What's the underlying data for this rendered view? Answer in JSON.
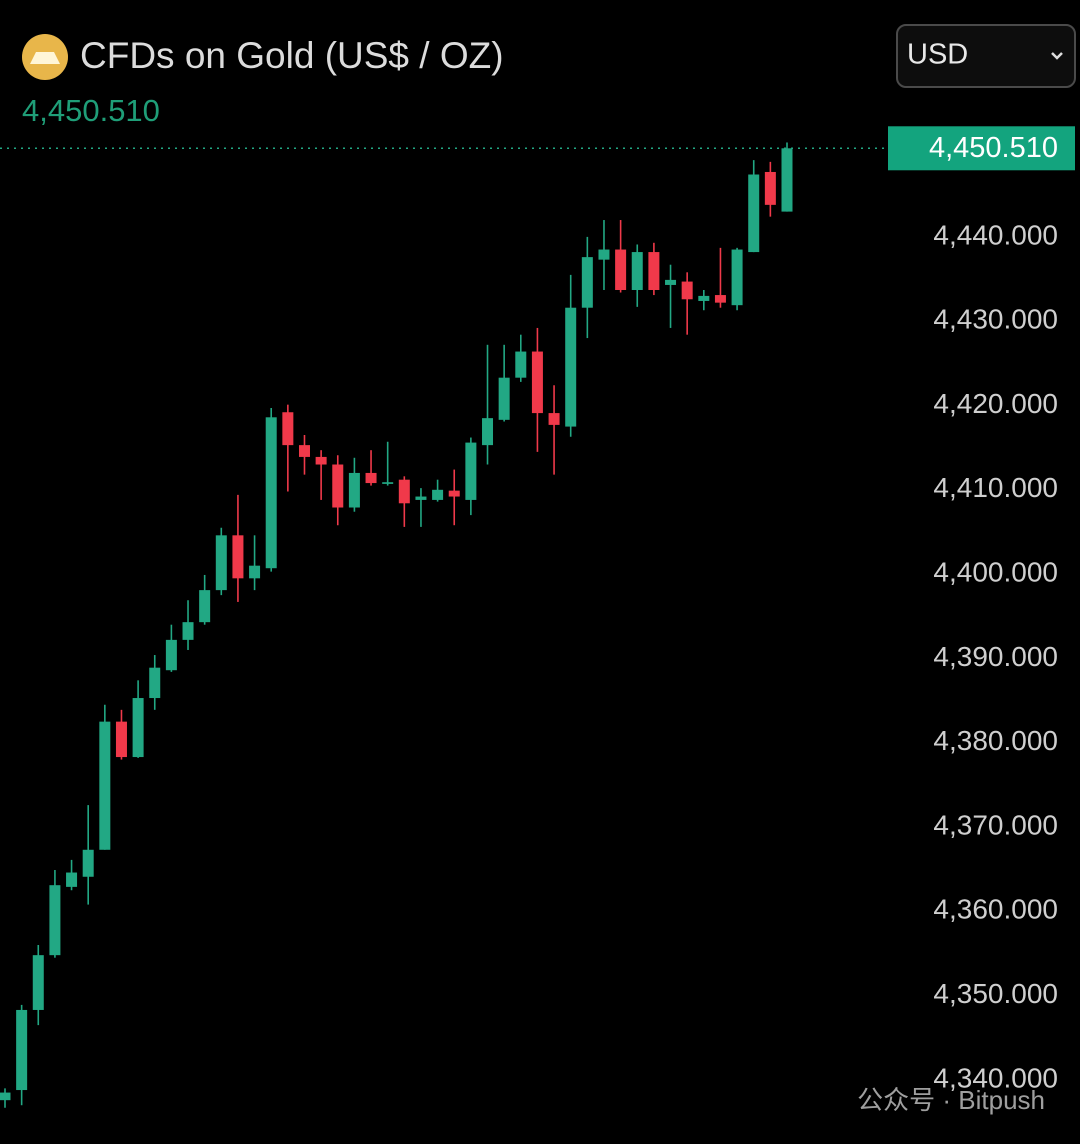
{
  "chart_data": {
    "type": "candlestick",
    "title": "CFDs on Gold (US$ / OZ)",
    "currency": "USD",
    "last_price": {
      "value": 4450.51,
      "label": "4,450.510"
    },
    "watermark": "公众号 · Bitpush",
    "up_color": "#22a884",
    "down_color": "#f0394a",
    "open": [
      4337.6,
      4338.8,
      4348.3,
      4354.8,
      4362.9,
      4364.1,
      4367.3,
      4382.5,
      4378.3,
      4385.3,
      4388.6,
      4392.2,
      4394.3,
      4398.1,
      4404.6,
      4399.5,
      4400.7,
      4419.2,
      4415.3,
      4413.9,
      4413.0,
      4407.9,
      4412.0,
      4410.7,
      4411.2,
      4408.8,
      4408.8,
      4409.9,
      4408.8,
      4415.3,
      4418.3,
      4423.3,
      4426.4,
      4419.1,
      4417.5,
      4431.6,
      4437.3,
      4438.5,
      4433.7,
      4438.2,
      4434.3,
      4434.7,
      4432.4,
      4433.1,
      4431.9,
      4438.2,
      4447.7,
      4443.0
    ],
    "high": [
      4339.0,
      4348.9,
      4356.0,
      4364.9,
      4366.1,
      4372.6,
      4384.5,
      4383.9,
      4387.4,
      4390.4,
      4394.0,
      4396.9,
      4399.9,
      4405.5,
      4409.4,
      4404.6,
      4419.7,
      4420.1,
      4416.5,
      4414.7,
      4414.1,
      4413.8,
      4414.7,
      4415.7,
      4411.6,
      4410.2,
      4411.2,
      4412.4,
      4416.2,
      4427.2,
      4427.2,
      4428.4,
      4429.2,
      4422.4,
      4435.5,
      4440.0,
      4442.0,
      4442.0,
      4439.1,
      4439.3,
      4436.7,
      4435.8,
      4433.7,
      4438.7,
      4438.7,
      4449.1,
      4448.9,
      4451.2
    ],
    "low": [
      4336.7,
      4337.0,
      4346.5,
      4354.5,
      4362.5,
      4360.8,
      4367.3,
      4378.0,
      4378.2,
      4383.9,
      4388.4,
      4391.0,
      4394.0,
      4397.5,
      4396.7,
      4398.1,
      4400.3,
      4409.8,
      4411.8,
      4408.8,
      4405.8,
      4407.4,
      4410.5,
      4410.5,
      4405.6,
      4405.6,
      4408.6,
      4405.8,
      4407.0,
      4413.0,
      4418.1,
      4422.8,
      4414.5,
      4411.8,
      4416.3,
      4428.0,
      4433.7,
      4433.4,
      4431.7,
      4433.1,
      4429.2,
      4428.4,
      4431.3,
      4431.6,
      4431.3,
      4438.2,
      4442.4,
      4443.0
    ],
    "close": [
      4338.5,
      4348.3,
      4354.8,
      4363.1,
      4364.6,
      4367.3,
      4382.5,
      4378.3,
      4385.3,
      4388.9,
      4392.2,
      4394.3,
      4398.1,
      4404.6,
      4399.5,
      4401.0,
      4418.6,
      4415.3,
      4413.9,
      4413.0,
      4407.9,
      4412.0,
      4410.8,
      4410.9,
      4408.4,
      4409.2,
      4410.0,
      4409.2,
      4415.6,
      4418.5,
      4423.3,
      4426.4,
      4419.1,
      4417.7,
      4431.6,
      4437.6,
      4438.5,
      4433.7,
      4438.2,
      4433.7,
      4434.9,
      4432.6,
      4433.0,
      4432.2,
      4438.5,
      4447.4,
      4443.8,
      4450.51
    ],
    "ylim": [
      4332.4,
      4468.1
    ],
    "yticks": [
      {
        "value": 4340,
        "label": "4,340.000"
      },
      {
        "value": 4350,
        "label": "4,350.000"
      },
      {
        "value": 4360,
        "label": "4,360.000"
      },
      {
        "value": 4370,
        "label": "4,370.000"
      },
      {
        "value": 4380,
        "label": "4,380.000"
      },
      {
        "value": 4390,
        "label": "4,390.000"
      },
      {
        "value": 4400,
        "label": "4,400.000"
      },
      {
        "value": 4410,
        "label": "4,410.000"
      },
      {
        "value": 4420,
        "label": "4,420.000"
      },
      {
        "value": 4430,
        "label": "4,430.000"
      },
      {
        "value": 4440,
        "label": "4,440.000"
      }
    ],
    "grid": false
  }
}
